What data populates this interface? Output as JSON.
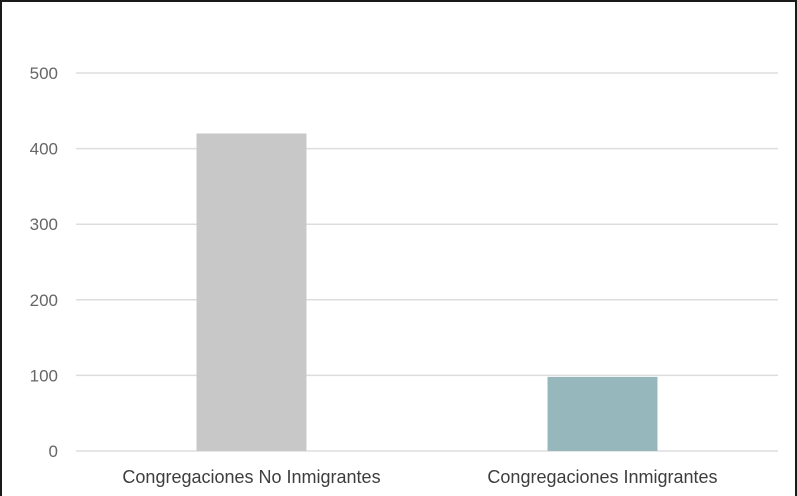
{
  "chart_data": {
    "type": "bar",
    "title": "",
    "xlabel": "",
    "ylabel": "",
    "categories": [
      "Congregaciones No Inmigrantes",
      "Congregaciones Inmigrantes"
    ],
    "values": [
      420,
      98
    ],
    "bar_colors": [
      "#c8c8c8",
      "#96b8bc"
    ],
    "ylim": [
      0,
      500
    ],
    "yticks": [
      0,
      100,
      200,
      300,
      400,
      500
    ],
    "grid": true,
    "gridline_color": "#dddddd",
    "legend": "none"
  }
}
